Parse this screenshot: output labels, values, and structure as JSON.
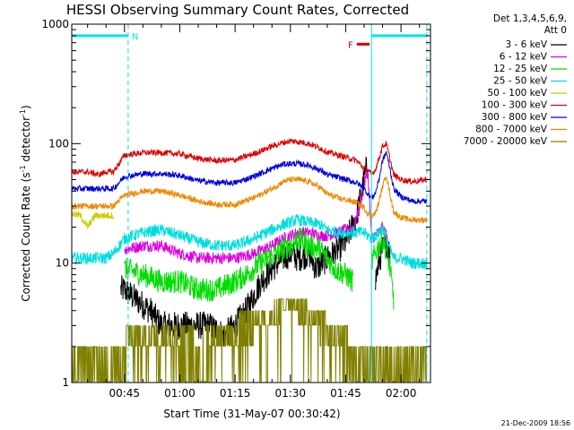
{
  "chart_data": {
    "type": "line",
    "title": "HESSI Observing Summary Count Rates, Corrected",
    "xlabel": "Start Time (31-May-07 00:30:42)",
    "ylabel_main": "Corrected Count Rate (s",
    "ylabel_sup1": "-1",
    "ylabel_mid": " detector",
    "ylabel_sup2": "-1",
    "ylabel_end": ")",
    "y_scale": "log",
    "ylim": [
      1,
      1000
    ],
    "xlim_minutes": [
      30.7,
      128
    ],
    "x_ticks": [
      {
        "m": 45,
        "label": "00:45"
      },
      {
        "m": 60,
        "label": "01:00"
      },
      {
        "m": 75,
        "label": "01:15"
      },
      {
        "m": 90,
        "label": "01:30"
      },
      {
        "m": 105,
        "label": "01:45"
      },
      {
        "m": 120,
        "label": "02:00"
      }
    ],
    "y_ticks": [
      {
        "v": 1,
        "label": "1"
      },
      {
        "v": 10,
        "label": "10"
      },
      {
        "v": 100,
        "label": "100"
      },
      {
        "v": 1000,
        "label": "1000"
      }
    ],
    "legend_header": [
      "Det 1,3,4,5,6,9,",
      "Att 0"
    ],
    "flags": [
      {
        "label": "N",
        "color": "#00e5e5",
        "start": 30.7,
        "end": 46,
        "value": 800
      },
      {
        "label": "",
        "color": "#00e5e5",
        "start": 112,
        "end": 127,
        "value": 800
      },
      {
        "label": "F",
        "color": "#dd0000",
        "start": 108,
        "end": 111.5,
        "value": 680
      }
    ],
    "boundaries": [
      {
        "m": 30.7,
        "color": "#00e5e5",
        "style": "solid"
      },
      {
        "m": 46,
        "color": "#00e5e5",
        "style": "dash"
      },
      {
        "m": 112,
        "color": "#00e5e5",
        "style": "solid"
      },
      {
        "m": 127,
        "color": "#00e5e5",
        "style": "dash"
      }
    ],
    "series": [
      {
        "name": "3 - 6 keV",
        "color": "#000000",
        "noise": 0.12,
        "x": [
          42,
          44,
          45,
          48,
          52,
          55,
          60,
          65,
          68,
          72,
          75,
          78,
          82,
          85,
          88,
          90,
          92,
          95,
          97,
          100,
          103,
          105,
          108,
          110,
          111,
          112,
          113,
          114,
          115,
          116,
          117,
          118
        ],
        "y": [
          null,
          6,
          6,
          5,
          4,
          3,
          3,
          3,
          3,
          2.5,
          3,
          4,
          7,
          9,
          11,
          12,
          11,
          12,
          9,
          11,
          13,
          15,
          25,
          50,
          70,
          null,
          7,
          10,
          13,
          15,
          12,
          null
        ]
      },
      {
        "name": "6 - 12 keV",
        "color": "#dd00dd",
        "noise": 0.05,
        "x": [
          42,
          45,
          50,
          55,
          60,
          65,
          70,
          75,
          80,
          85,
          88,
          90,
          92,
          95,
          98,
          100,
          103,
          105,
          107,
          108,
          109,
          110,
          111,
          112,
          113,
          114,
          115,
          116,
          117,
          118
        ],
        "y": [
          null,
          13,
          14,
          14,
          12,
          11,
          11,
          11,
          12,
          14,
          16,
          17,
          18,
          18,
          17,
          17,
          18,
          19,
          20,
          24,
          32,
          45,
          60,
          16,
          17,
          18,
          20,
          17,
          14,
          null
        ]
      },
      {
        "name": "12 - 25 keV",
        "color": "#00dd00",
        "noise": 0.1,
        "x": [
          42,
          45,
          50,
          55,
          60,
          65,
          70,
          75,
          78,
          82,
          86,
          90,
          92,
          95,
          98,
          100,
          102,
          105,
          107,
          108,
          109,
          110,
          111,
          112,
          113,
          114,
          115,
          116,
          117,
          118,
          119
        ],
        "y": [
          null,
          9,
          8,
          7,
          7,
          6,
          6,
          7,
          8,
          10,
          12,
          14,
          16,
          14,
          13,
          11,
          9,
          8,
          7,
          null,
          null,
          null,
          null,
          10,
          12,
          14,
          16,
          13,
          9,
          5,
          null
        ]
      },
      {
        "name": "25 - 50 keV",
        "color": "#00dddd",
        "noise": 0.05,
        "x": [
          30.7,
          35,
          40,
          42,
          45,
          50,
          55,
          60,
          65,
          70,
          75,
          80,
          85,
          88,
          90,
          92,
          95,
          98,
          100,
          103,
          105,
          108,
          110,
          111,
          112,
          113,
          114,
          115,
          116,
          117,
          118,
          120,
          123,
          127
        ],
        "y": [
          11,
          11,
          11,
          12,
          16,
          18,
          19,
          17,
          15,
          14,
          14,
          16,
          19,
          21,
          22,
          23,
          22,
          21,
          19,
          18,
          18,
          18,
          18,
          17,
          16,
          17,
          18,
          20,
          16,
          13,
          11,
          11,
          10,
          10
        ]
      },
      {
        "name": "50 - 100 keV",
        "color": "#cccc00",
        "noise": 0.03,
        "x": [
          30.7,
          33,
          35,
          37,
          40,
          42
        ],
        "y": [
          26,
          25,
          20,
          25,
          25,
          25
        ]
      },
      {
        "name": "100 - 300 keV",
        "color": "#dd0000",
        "noise": 0.025,
        "x": [
          30.7,
          35,
          38,
          40,
          42,
          45,
          50,
          55,
          60,
          65,
          70,
          75,
          80,
          85,
          88,
          90,
          92,
          95,
          98,
          100,
          103,
          105,
          108,
          110,
          111,
          112,
          113,
          114,
          115,
          116,
          117,
          118,
          120,
          123,
          127
        ],
        "y": [
          58,
          58,
          55,
          58,
          58,
          80,
          84,
          84,
          82,
          75,
          72,
          73,
          82,
          95,
          102,
          105,
          104,
          100,
          92,
          85,
          80,
          77,
          72,
          62,
          60,
          55,
          60,
          75,
          95,
          100,
          75,
          55,
          50,
          48,
          50
        ]
      },
      {
        "name": "300 - 800 keV",
        "color": "#0000dd",
        "noise": 0.025,
        "x": [
          30.7,
          35,
          40,
          42,
          45,
          50,
          55,
          60,
          65,
          70,
          75,
          80,
          85,
          88,
          90,
          92,
          95,
          98,
          100,
          103,
          105,
          108,
          110,
          111,
          112,
          113,
          114,
          115,
          116,
          117,
          118,
          120,
          123,
          127
        ],
        "y": [
          42,
          42,
          42,
          42,
          53,
          56,
          56,
          54,
          49,
          47,
          47,
          53,
          62,
          67,
          68,
          68,
          66,
          60,
          55,
          52,
          50,
          47,
          42,
          38,
          35,
          38,
          50,
          72,
          85,
          62,
          42,
          36,
          33,
          33
        ]
      },
      {
        "name": "800 - 7000 keV",
        "color": "#ee8800",
        "noise": 0.025,
        "x": [
          30.7,
          35,
          40,
          42,
          45,
          50,
          55,
          60,
          65,
          70,
          75,
          80,
          85,
          88,
          90,
          92,
          95,
          98,
          100,
          103,
          105,
          108,
          110,
          111,
          112,
          113,
          114,
          115,
          116,
          117,
          118,
          120,
          123,
          127
        ],
        "y": [
          30,
          30,
          30,
          30,
          37,
          40,
          40,
          37,
          33,
          31,
          31,
          35,
          42,
          48,
          50,
          50,
          48,
          43,
          38,
          35,
          34,
          32,
          29,
          26,
          25,
          26,
          32,
          44,
          55,
          38,
          27,
          24,
          23,
          23
        ]
      },
      {
        "name": "7000 - 20000 keV",
        "color": "#808000",
        "noise": 0,
        "x": [
          30.7,
          45,
          46,
          47,
          50,
          55,
          60,
          65,
          68,
          72,
          75,
          80,
          85,
          88,
          90,
          92,
          95,
          98,
          100,
          102,
          104,
          106,
          108,
          110,
          112,
          114,
          116,
          118,
          120,
          123,
          127
        ],
        "y": [
          1.5,
          1.5,
          3,
          3,
          3,
          2.5,
          2.5,
          2,
          2.5,
          2.5,
          3,
          3.5,
          4,
          4.5,
          5,
          4.5,
          4,
          3.5,
          3,
          2.5,
          2.5,
          2,
          2,
          2,
          2,
          2,
          1.5,
          1.5,
          1.5,
          1.5,
          1.5
        ]
      }
    ]
  },
  "footer": {
    "timestamp": "21-Dec-2009 18:56"
  }
}
